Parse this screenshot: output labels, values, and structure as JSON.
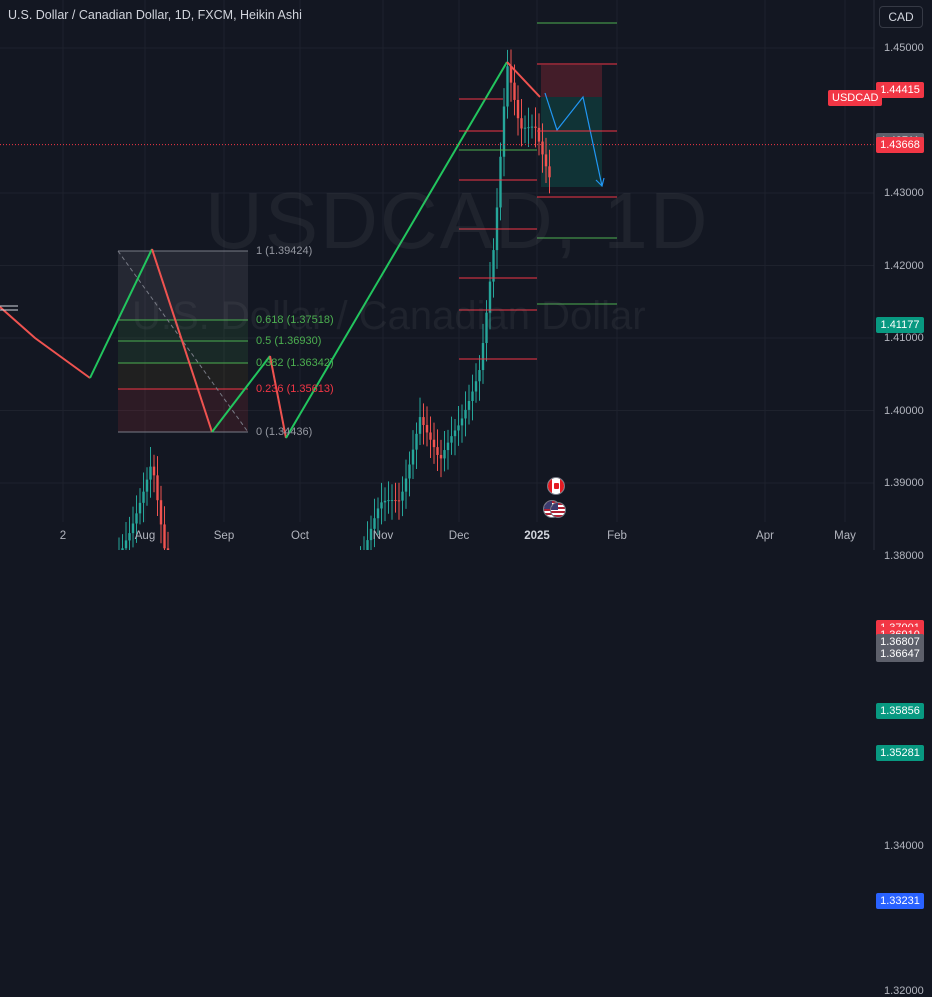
{
  "title": "U.S. Dollar / Canadian Dollar, 1D, FXCM, Heikin Ashi",
  "currency_button": "CAD",
  "watermark": {
    "symbol": "USDCAD, 1D",
    "name": "U.S. Dollar / Canadian Dollar"
  },
  "symbol_badge": "USDCAD",
  "price_scale": [
    {
      "price": 1.45,
      "label": "1.45000"
    },
    {
      "price": 1.43,
      "label": "1.43000"
    },
    {
      "price": 1.42,
      "label": "1.42000"
    },
    {
      "price": 1.41,
      "label": "1.41000"
    },
    {
      "price": 1.4,
      "label": "1.40000"
    },
    {
      "price": 1.39,
      "label": "1.39000"
    },
    {
      "price": 1.38,
      "label": "1.38000"
    },
    {
      "price": 1.34,
      "label": "1.34000"
    },
    {
      "price": 1.32,
      "label": "1.32000"
    }
  ],
  "price_badges": [
    {
      "price": 1.44415,
      "label": "1.44415",
      "color": "#f23645"
    },
    {
      "price": 1.43711,
      "label": "1.43711",
      "color": "#5d606b"
    },
    {
      "price": 1.43668,
      "label": "1.43668",
      "color": "#f23645"
    },
    {
      "price": 1.41177,
      "label": "1.41177",
      "color": "#089981"
    },
    {
      "price": 1.37001,
      "label": "1.37001",
      "color": "#f23645"
    },
    {
      "price": 1.3691,
      "label": "1.36910",
      "color": "#f23645"
    },
    {
      "price": 1.36807,
      "label": "1.36807",
      "color": "#5d606b"
    },
    {
      "price": 1.36647,
      "label": "1.36647",
      "color": "#5d606b"
    },
    {
      "price": 1.35856,
      "label": "1.35856",
      "color": "#089981"
    },
    {
      "price": 1.35281,
      "label": "1.35281",
      "color": "#089981"
    },
    {
      "price": 1.33231,
      "label": "1.33231",
      "color": "#2962ff"
    }
  ],
  "time_axis": [
    {
      "label": "2",
      "bold": false
    },
    {
      "label": "Aug",
      "bold": false
    },
    {
      "label": "Sep",
      "bold": false
    },
    {
      "label": "Oct",
      "bold": false
    },
    {
      "label": "Nov",
      "bold": false
    },
    {
      "label": "Dec",
      "bold": false
    },
    {
      "label": "2025",
      "bold": true
    },
    {
      "label": "Feb",
      "bold": false
    },
    {
      "label": "Apr",
      "bold": false
    },
    {
      "label": "May",
      "bold": false
    }
  ],
  "fib_levels": [
    {
      "label": "1 (1.39424)",
      "color": "#9598a1"
    },
    {
      "label": "0.618 (1.37518)",
      "color": "#4caf50"
    },
    {
      "label": "0.5 (1.36930)",
      "color": "#4caf50"
    },
    {
      "label": "0.382 (1.36342)",
      "color": "#4caf50"
    },
    {
      "label": "0.236 (1.35613)",
      "color": "#f23645"
    },
    {
      "label": "0 (1.34436)",
      "color": "#9598a1"
    }
  ],
  "colors": {
    "up": "#26a69a",
    "down": "#ef5350",
    "zigzag": "#22c55e",
    "zigzag_down": "#ef5350",
    "projection": "#2196f3",
    "background": "#131722"
  },
  "chart_data": {
    "type": "candlestick",
    "style": "Heikin Ashi",
    "symbol": "USDCAD",
    "timeframe": "1D",
    "source": "FXCM",
    "ylim": [
      1.318,
      1.458
    ],
    "x_ticks": [
      "2",
      "Aug",
      "Sep",
      "Oct",
      "Nov",
      "Dec",
      "2025",
      "Feb",
      "Apr",
      "May"
    ],
    "current_price": 1.43668,
    "swing_points": [
      {
        "date": "Jul",
        "price": 1.372
      },
      {
        "date": "Jul",
        "price": 1.3655
      },
      {
        "date": "Aug",
        "price": 1.3942
      },
      {
        "date": "Aug",
        "price": 1.3444
      },
      {
        "date": "Sep",
        "price": 1.361
      },
      {
        "date": "Sep",
        "price": 1.3445
      },
      {
        "date": "Dec",
        "price": 1.4467
      },
      {
        "date": "Jan",
        "price": 1.438
      }
    ],
    "projection": [
      1.4367,
      1.428,
      1.4367,
      1.412
    ],
    "horizontal_lines": [
      1.33231,
      1.36647
    ]
  }
}
